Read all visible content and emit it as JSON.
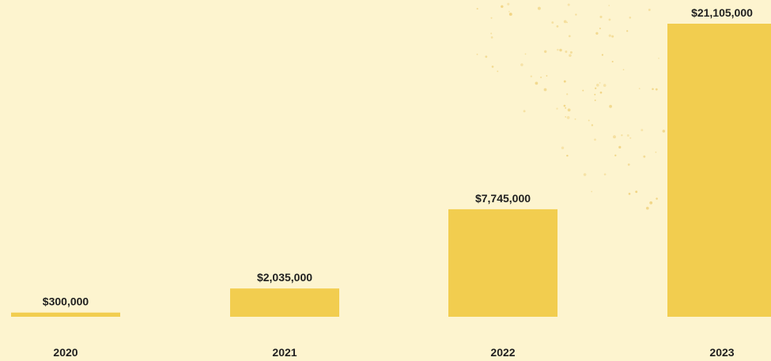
{
  "colors": {
    "background": "#fdf4cf",
    "bar": "#f2cd4f",
    "dots": "#ecc96a"
  },
  "chart_data": {
    "type": "bar",
    "categories": [
      "2020",
      "2021",
      "2022",
      "2023"
    ],
    "values": [
      300000,
      2035000,
      7745000,
      21105000
    ],
    "value_labels": [
      "$300,000",
      "$2,035,000",
      "$7,745,000",
      "$21,105,000"
    ],
    "title": "",
    "xlabel": "",
    "ylabel": "",
    "ylim": [
      0,
      21105000
    ],
    "grid": false,
    "legend": "none"
  }
}
